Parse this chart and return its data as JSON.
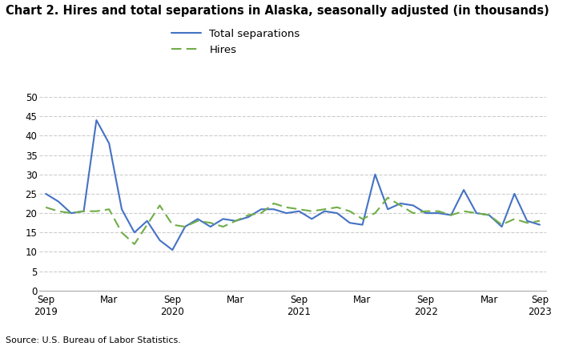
{
  "title": "Chart 2. Hires and total separations in Alaska, seasonally adjusted (in thousands)",
  "source": "Source: U.S. Bureau of Labor Statistics.",
  "legend_labels": [
    "Total separations",
    "Hires"
  ],
  "background_color": "#ffffff",
  "plot_bg_color": "#ffffff",
  "ylim": [
    0,
    50
  ],
  "yticks": [
    0,
    5,
    10,
    15,
    20,
    25,
    30,
    35,
    40,
    45,
    50
  ],
  "xtick_labels": [
    "Sep\n2019",
    "Mar",
    "Sep\n2020",
    "Mar",
    "Sep\n2021",
    "Mar",
    "Sep\n2022",
    "Mar",
    "Sep\n2023"
  ],
  "total_separations": [
    25.0,
    23.0,
    20.0,
    20.5,
    44.0,
    38.0,
    21.0,
    15.0,
    18.0,
    13.0,
    10.5,
    16.5,
    18.5,
    16.5,
    18.5,
    18.0,
    19.0,
    21.0,
    21.0,
    20.0,
    20.5,
    18.5,
    20.5,
    20.0,
    17.5,
    17.0,
    30.0,
    21.0,
    22.5,
    22.0,
    20.0,
    20.0,
    19.5,
    26.0,
    20.0,
    19.5,
    16.5,
    25.0,
    18.0,
    17.0
  ],
  "hires": [
    21.5,
    20.5,
    20.0,
    20.5,
    20.5,
    21.0,
    15.0,
    12.0,
    17.0,
    22.0,
    17.0,
    16.5,
    18.0,
    17.5,
    16.5,
    18.0,
    19.5,
    20.0,
    22.5,
    21.5,
    21.0,
    20.5,
    21.0,
    21.5,
    20.5,
    18.5,
    20.0,
    24.0,
    22.0,
    20.0,
    20.5,
    20.5,
    19.5,
    20.5,
    20.0,
    19.5,
    17.0,
    18.5,
    17.5,
    18.0
  ],
  "sep_color": "#4472c4",
  "hires_color": "#70ad47",
  "sep_linewidth": 1.5,
  "hires_linewidth": 1.5,
  "title_fontsize": 10.5,
  "tick_fontsize": 8.5,
  "source_fontsize": 8.0,
  "legend_fontsize": 9.5
}
